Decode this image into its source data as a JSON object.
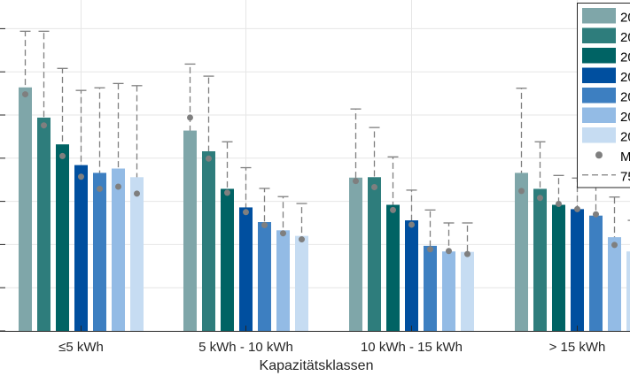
{
  "chart_data": {
    "type": "bar",
    "categories": [
      "≤5 kWh",
      "5 kWh - 10 kWh",
      "10 kWh - 15 kWh",
      "> 15 kWh"
    ],
    "xlabel": "Kapazitätsklassen",
    "ylabel": "",
    "ylim": [
      0,
      7.5
    ],
    "grid": true,
    "legend_position": "top-right",
    "series": [
      {
        "name": "20",
        "color": "#7fa6a9",
        "values": [
          5.64,
          4.64,
          3.55,
          3.66
        ],
        "median": [
          5.48,
          4.94,
          3.47,
          3.24
        ],
        "whisker_low": [
          3.44,
          3.26,
          2.19,
          2.44
        ],
        "whisker_high": [
          6.94,
          6.18,
          5.14,
          5.62
        ]
      },
      {
        "name": "20",
        "color": "#2e7d7c",
        "values": [
          4.94,
          4.16,
          3.56,
          3.29
        ],
        "median": [
          4.76,
          3.99,
          3.33,
          3.08
        ],
        "whisker_low": [
          3.15,
          2.57,
          2.45,
          2.42
        ],
        "whisker_high": [
          6.94,
          5.9,
          4.71,
          4.38
        ]
      },
      {
        "name": "20",
        "color": "#006364",
        "values": [
          4.32,
          3.29,
          2.92,
          2.92
        ],
        "median": [
          4.05,
          3.2,
          2.8,
          2.94
        ],
        "whisker_low": [
          2.81,
          2.42,
          1.95,
          2.27
        ],
        "whisker_high": [
          6.08,
          4.38,
          4.03,
          3.6
        ]
      },
      {
        "name": "20",
        "color": "#004f9f",
        "values": [
          3.84,
          2.86,
          2.56,
          2.82
        ],
        "median": [
          3.57,
          2.75,
          2.46,
          2.82
        ],
        "whisker_low": [
          2.34,
          1.91,
          1.87,
          2.09
        ],
        "whisker_high": [
          5.57,
          3.78,
          3.26,
          3.54
        ]
      },
      {
        "name": "20",
        "color": "#3d7fc1",
        "values": [
          3.66,
          2.52,
          1.97,
          2.67
        ],
        "median": [
          3.29,
          2.45,
          1.89,
          2.7
        ],
        "whisker_low": [
          2.22,
          1.86,
          1.05,
          1.89
        ],
        "whisker_high": [
          5.63,
          3.3,
          2.8,
          3.59
        ]
      },
      {
        "name": "20",
        "color": "#93bbe5",
        "values": [
          3.76,
          2.33,
          1.84,
          2.17
        ],
        "median": [
          3.34,
          2.26,
          1.85,
          1.99
        ],
        "whisker_low": [
          2.21,
          1.49,
          1.07,
          1.37
        ],
        "whisker_high": [
          5.73,
          3.11,
          2.5,
          3.1
        ]
      },
      {
        "name": "20",
        "color": "#c6dcf2",
        "values": [
          3.56,
          2.2,
          1.83,
          1.84
        ],
        "median": [
          3.18,
          2.12,
          1.78,
          1.66
        ],
        "whisker_low": [
          1.71,
          1.37,
          1.17,
          1.1
        ],
        "whisker_high": [
          5.68,
          2.95,
          2.5,
          2.56
        ]
      }
    ],
    "legend_extra": [
      {
        "name": "M",
        "marker": "dot",
        "color": "#7f7f7f"
      },
      {
        "name": "75",
        "marker": "dashed-line",
        "color": "#7f7f7f"
      }
    ]
  }
}
